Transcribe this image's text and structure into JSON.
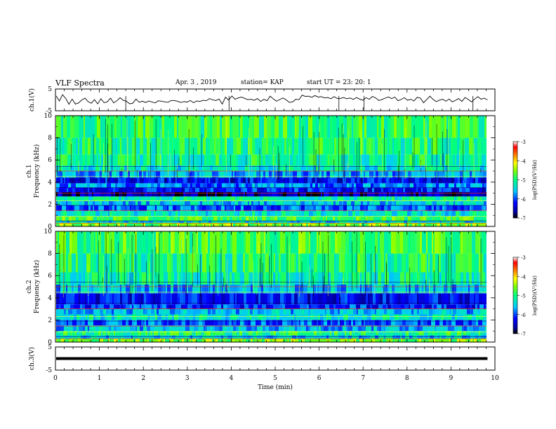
{
  "header": {
    "title": "VLF Spectra",
    "date": "Apr. 3  , 2019",
    "station": "station= KAP",
    "start_ut": "start  UT  =   23: 20: 1"
  },
  "chart_data": [
    {
      "type": "line",
      "panel": "ch1-waveform",
      "ylabel": "ch.1(V)",
      "ylim": [
        -5,
        5
      ],
      "yticks": [
        "5",
        "-5"
      ],
      "xlim": [
        0,
        10
      ],
      "x_extent_min": 9.83,
      "values": [
        1.8,
        -0.5,
        2.4,
        0.6,
        -2.0,
        0.4,
        -1.9,
        -1.4,
        -0.1,
        0.8,
        -0.8,
        -1.5,
        0.1,
        -1.8,
        0.5,
        -1.3,
        -0.9,
        0.8,
        -1.4,
        -0.4,
        1.0,
        -0.2,
        -0.6,
        -1.8,
        -1.5,
        0.4,
        -1.1,
        -0.6,
        -1.2,
        -0.5,
        -1.0,
        -1.4,
        -0.4,
        -0.6,
        -0.9,
        -1.1,
        -0.3,
        -0.3,
        -0.6,
        -1.2,
        -0.8,
        -1.0,
        -0.3,
        -1.3,
        -0.5,
        -0.7,
        -0.2,
        -0.4,
        0.6,
        0.0,
        -0.3,
        0.4,
        -1.9,
        1.3,
        -0.1,
        1.8,
        0.3,
        0.9,
        1.3,
        0.7,
        0.1,
        0.3,
        -0.2,
        0.6,
        -0.7,
        0.3,
        -0.4,
        1.7,
        0.4,
        -0.6,
        0.2,
        0.9,
        0.0,
        -1.2,
        -0.9,
        0.3,
        0.1,
        2.2,
        1.6,
        1.7,
        1.2,
        2.0,
        1.3,
        1.5,
        0.9,
        1.1,
        0.5,
        1.5,
        0.6,
        0.7,
        1.1,
        0.5,
        0.9,
        0.2,
        1.1,
        0.4,
        -0.2,
        1.0,
        0.3,
        1.6,
        0.9,
        -0.3,
        0.2,
        0.8,
        1.4,
        0.6,
        1.3,
        -0.4,
        0.2,
        1.0,
        -0.2,
        0.3,
        -0.5,
        1.2,
        0.8,
        -1.3,
        0.2,
        1.7,
        0.2,
        -0.8,
        -0.1,
        0.3,
        -0.6,
        0.4,
        -0.9,
        -0.2,
        0.6,
        -0.7,
        1.1,
        0.2,
        -0.9,
        0.4,
        1.5,
        0.3,
        0.8,
        0.0
      ]
    },
    {
      "type": "heatmap",
      "panel": "ch1-spectrogram",
      "ylabel": "ch.1\nFrequency (kHz)",
      "ylim": [
        0,
        10
      ],
      "yticks": [
        "0",
        "2",
        "4",
        "6",
        "8",
        "10"
      ],
      "xlim": [
        0,
        10
      ],
      "colorbar": {
        "label": "log(PSD)(V²/Hz)",
        "range": [
          -7,
          -3
        ],
        "ticks": [
          "-3",
          "-4",
          "-5",
          "-6",
          "-7"
        ]
      },
      "bands": [
        {
          "f0": 0.0,
          "f1": 0.3,
          "level": -4.6
        },
        {
          "f0": 0.3,
          "f1": 0.5,
          "level": -5.4
        },
        {
          "f0": 0.5,
          "f1": 0.9,
          "level": -4.8
        },
        {
          "f0": 0.9,
          "f1": 1.4,
          "level": -5.3
        },
        {
          "f0": 1.4,
          "f1": 1.9,
          "level": -5.9
        },
        {
          "f0": 1.9,
          "f1": 2.3,
          "level": -5.5
        },
        {
          "f0": 2.3,
          "f1": 2.7,
          "level": -5.2
        },
        {
          "f0": 2.7,
          "f1": 3.1,
          "level": -6.6
        },
        {
          "f0": 3.1,
          "f1": 3.5,
          "level": -6.2
        },
        {
          "f0": 3.5,
          "f1": 3.9,
          "level": -5.8
        },
        {
          "f0": 3.9,
          "f1": 4.4,
          "level": -6.3
        },
        {
          "f0": 4.4,
          "f1": 5.0,
          "level": -5.7
        },
        {
          "f0": 5.0,
          "f1": 5.5,
          "level": -5.3
        },
        {
          "f0": 5.5,
          "f1": 6.5,
          "level": -5.1
        },
        {
          "f0": 6.5,
          "f1": 8.0,
          "level": -5.0
        },
        {
          "f0": 8.0,
          "f1": 10.0,
          "level": -4.9
        }
      ]
    },
    {
      "type": "heatmap",
      "panel": "ch2-spectrogram",
      "ylabel": "ch.2\nFrequency (kHz)",
      "ylim": [
        0,
        10
      ],
      "yticks": [
        "0",
        "2",
        "4",
        "6",
        "8",
        "10"
      ],
      "xlim": [
        0,
        10
      ],
      "colorbar": {
        "label": "log(PSD)(V²/Hz)",
        "range": [
          -7,
          -3
        ],
        "ticks": [
          "-3",
          "-4",
          "-5",
          "-6",
          "-7"
        ]
      },
      "bands": [
        {
          "f0": 0.0,
          "f1": 0.3,
          "level": -4.6
        },
        {
          "f0": 0.3,
          "f1": 0.6,
          "level": -5.5
        },
        {
          "f0": 0.6,
          "f1": 1.0,
          "level": -5.0
        },
        {
          "f0": 1.0,
          "f1": 1.5,
          "level": -5.6
        },
        {
          "f0": 1.5,
          "f1": 2.0,
          "level": -5.9
        },
        {
          "f0": 2.0,
          "f1": 2.5,
          "level": -5.3
        },
        {
          "f0": 2.5,
          "f1": 3.0,
          "level": -5.6
        },
        {
          "f0": 3.0,
          "f1": 3.4,
          "level": -6.1
        },
        {
          "f0": 3.4,
          "f1": 4.4,
          "level": -6.3
        },
        {
          "f0": 4.4,
          "f1": 5.2,
          "level": -5.6
        },
        {
          "f0": 5.2,
          "f1": 6.3,
          "level": -5.2
        },
        {
          "f0": 6.3,
          "f1": 8.0,
          "level": -5.0
        },
        {
          "f0": 8.0,
          "f1": 10.0,
          "level": -4.8
        }
      ]
    },
    {
      "type": "line",
      "panel": "ch3-waveform",
      "ylabel": "ch.3(V)",
      "ylim": [
        -5,
        5
      ],
      "yticks": [
        "5",
        "-5"
      ],
      "xlim": [
        0,
        10
      ],
      "x_extent_min": 9.83,
      "values": [
        0.0,
        0.0
      ]
    }
  ],
  "xaxis": {
    "label": "Time  (min)",
    "ticks": [
      "0",
      "1",
      "2",
      "3",
      "4",
      "5",
      "6",
      "7",
      "8",
      "9",
      "10"
    ]
  }
}
